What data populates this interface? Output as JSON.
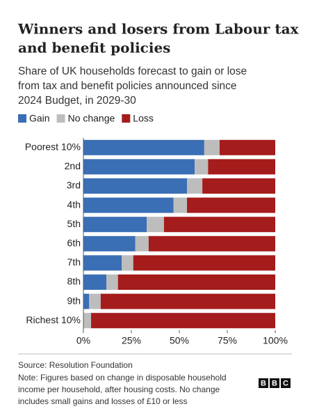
{
  "chart_data": {
    "type": "stacked_barh",
    "title": [
      "Winners and losers from Labour tax",
      "and benefit policies"
    ],
    "subtitle": [
      "Share of UK households forecast to gain or lose",
      "from tax and benefit policies announced since",
      "2024 Budget, in 2029-30"
    ],
    "categories": [
      "Poorest 10%",
      "2nd",
      "3rd",
      "4th",
      "5th",
      "6th",
      "7th",
      "8th",
      "9th",
      "Richest 10%"
    ],
    "series": [
      {
        "name": "Gain",
        "color": "#3a6fb5",
        "values": [
          63,
          58,
          54,
          47,
          33,
          27,
          20,
          12,
          3,
          0
        ]
      },
      {
        "name": "No change",
        "color": "#bdbdbd",
        "values": [
          8,
          7,
          8,
          7,
          9,
          7,
          6,
          6,
          6,
          4
        ]
      },
      {
        "name": "Loss",
        "color": "#a51c1c",
        "values": [
          29,
          35,
          38,
          46,
          58,
          66,
          74,
          82,
          91,
          96
        ]
      }
    ],
    "xlim": [
      0,
      100
    ],
    "xticks": [
      {
        "value": 0,
        "label": "0%"
      },
      {
        "value": 25,
        "label": "25%"
      },
      {
        "value": 50,
        "label": "50%"
      },
      {
        "value": 75,
        "label": "75%"
      },
      {
        "value": 100,
        "label": "100%"
      }
    ],
    "legend": "top-left",
    "source": "Source: Resolution Foundation",
    "note": [
      "Note: Figures based on change in disposable household",
      "income per household, after housing costs. No change",
      "includes small gains and losses of £10 or less"
    ],
    "logo": [
      "B",
      "B",
      "C"
    ]
  }
}
